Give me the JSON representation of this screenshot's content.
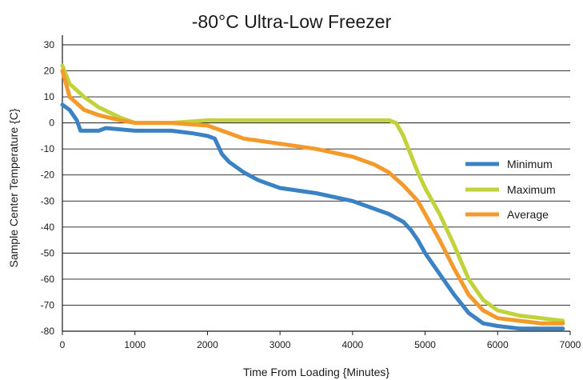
{
  "chart_data": {
    "type": "line",
    "title": "-80°C Ultra-Low Freezer",
    "xlabel": "Time From Loading {Minutes}",
    "ylabel": "Sample Center Temperature {C}",
    "xlim": [
      0,
      7000
    ],
    "ylim": [
      -80,
      30
    ],
    "x_ticks": [
      "0",
      "1000",
      "2000",
      "3000",
      "4000",
      "5000",
      "6000",
      "7000"
    ],
    "y_ticks": [
      "30",
      "20",
      "10",
      "0",
      "-10",
      "-20",
      "-30",
      "-40",
      "-50",
      "-60",
      "-70",
      "-80"
    ],
    "grid": "horizontal",
    "legend_position": "right",
    "series": [
      {
        "name": "Minimum",
        "color": "#3b82c4",
        "x": [
          0,
          100,
          200,
          250,
          300,
          500,
          600,
          1000,
          1500,
          1800,
          2000,
          2100,
          2150,
          2200,
          2300,
          2500,
          2700,
          3000,
          3500,
          4000,
          4300,
          4500,
          4700,
          4800,
          4900,
          5000,
          5200,
          5400,
          5600,
          5800,
          6000,
          6300,
          6600,
          6900
        ],
        "y": [
          7,
          5,
          1,
          -3,
          -3,
          -3,
          -2,
          -3,
          -3,
          -4,
          -5,
          -6,
          -9,
          -12,
          -15,
          -19,
          -22,
          -25,
          -27,
          -30,
          -33,
          -35,
          -38,
          -41,
          -45,
          -50,
          -58,
          -66,
          -73,
          -77,
          -78,
          -79,
          -79,
          -79
        ]
      },
      {
        "name": "Maximum",
        "color": "#c2d23b",
        "x": [
          0,
          100,
          300,
          500,
          800,
          1000,
          1500,
          2000,
          2500,
          3000,
          3500,
          4000,
          4500,
          4600,
          4700,
          4800,
          4900,
          5000,
          5200,
          5400,
          5600,
          5800,
          6000,
          6300,
          6600,
          6900
        ],
        "y": [
          22,
          15,
          10,
          6,
          2,
          0,
          0,
          1,
          1,
          1,
          1,
          1,
          1,
          0,
          -5,
          -12,
          -19,
          -25,
          -35,
          -47,
          -60,
          -68,
          -72,
          -74,
          -75,
          -76
        ]
      },
      {
        "name": "Average",
        "color": "#f39a2b",
        "x": [
          0,
          100,
          300,
          500,
          800,
          1000,
          1500,
          2000,
          2200,
          2500,
          3000,
          3500,
          4000,
          4300,
          4500,
          4700,
          4900,
          5000,
          5200,
          5400,
          5600,
          5800,
          6000,
          6300,
          6600,
          6900
        ],
        "y": [
          20,
          10,
          5,
          3,
          1,
          0,
          0,
          -1,
          -3,
          -6,
          -8,
          -10,
          -13,
          -16,
          -19,
          -24,
          -30,
          -35,
          -45,
          -56,
          -66,
          -72,
          -75,
          -76,
          -77,
          -77
        ]
      }
    ]
  }
}
